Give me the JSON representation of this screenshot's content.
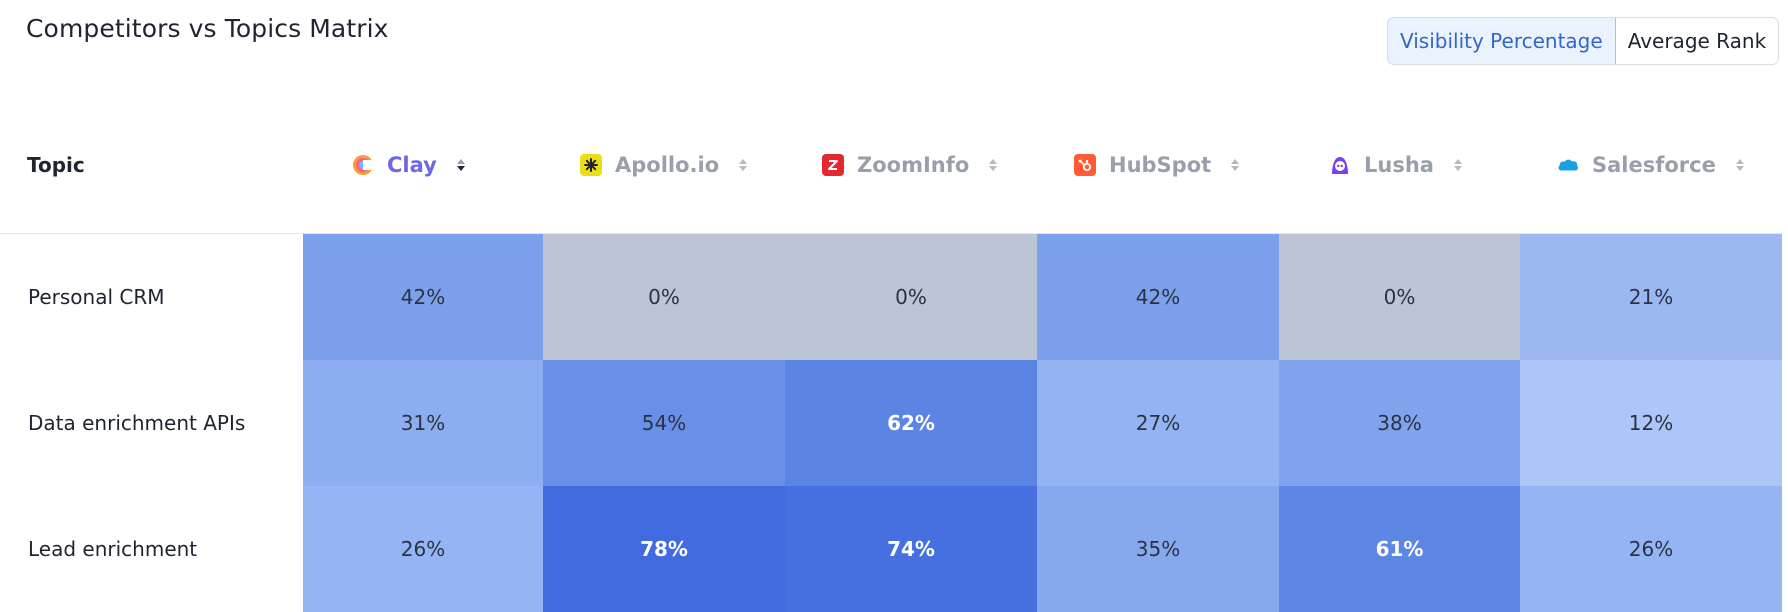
{
  "title": "Competitors vs Topics Matrix",
  "toggle": {
    "options": [
      "Visibility Percentage",
      "Average Rank"
    ],
    "selected": "Visibility Percentage"
  },
  "table": {
    "topic_header": "Topic",
    "competitors": [
      {
        "name": "Clay",
        "icon": "clay-logo-icon",
        "active": true,
        "color": "#6a67e8"
      },
      {
        "name": "Apollo.io",
        "icon": "apollo-logo-icon",
        "active": false,
        "color": "#ecde16"
      },
      {
        "name": "ZoomInfo",
        "icon": "zoominfo-logo-icon",
        "active": false,
        "color": "#e5282f"
      },
      {
        "name": "HubSpot",
        "icon": "hubspot-logo-icon",
        "active": false,
        "color": "#ff5c35"
      },
      {
        "name": "Lusha",
        "icon": "lusha-logo-icon",
        "active": false,
        "color": "#7b3ff2"
      },
      {
        "name": "Salesforce",
        "icon": "salesforce-logo-icon",
        "active": false,
        "color": "#1aa0e0"
      }
    ],
    "rows": [
      {
        "topic": "Personal CRM",
        "values": [
          "42%",
          "0%",
          "0%",
          "42%",
          "0%",
          "21%"
        ]
      },
      {
        "topic": "Data enrichment APIs",
        "values": [
          "31%",
          "54%",
          "62%",
          "27%",
          "38%",
          "12%"
        ]
      },
      {
        "topic": "Lead enrichment",
        "values": [
          "26%",
          "78%",
          "74%",
          "35%",
          "61%",
          "26%"
        ]
      }
    ]
  },
  "colors": {
    "zero": "#bcc5d6",
    "scale_low": "#b3cbfa",
    "scale_high": "#3f6ade",
    "accent": "#3466c7"
  }
}
